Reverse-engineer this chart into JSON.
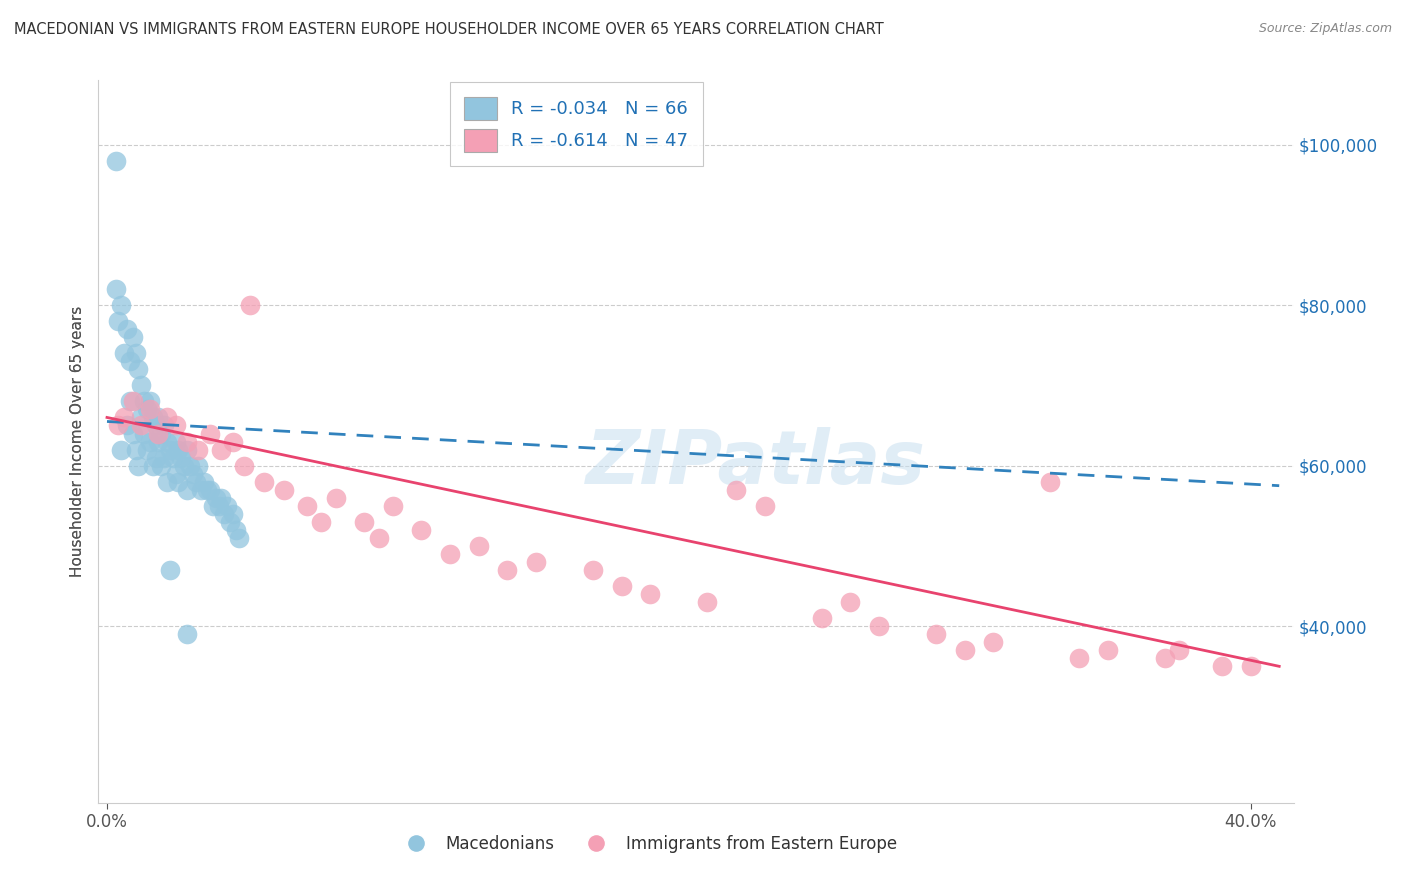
{
  "title": "MACEDONIAN VS IMMIGRANTS FROM EASTERN EUROPE HOUSEHOLDER INCOME OVER 65 YEARS CORRELATION CHART",
  "source": "Source: ZipAtlas.com",
  "ylabel": "Householder Income Over 65 years",
  "y_min": 18000,
  "y_max": 108000,
  "x_min": -0.003,
  "x_max": 0.415,
  "r1": -0.034,
  "n1": 66,
  "r2": -0.614,
  "n2": 47,
  "blue_color": "#92c5de",
  "pink_color": "#f4a0b5",
  "blue_line_color": "#3182bd",
  "pink_line_color": "#e8436e",
  "legend_label1": "Macedonians",
  "legend_label2": "Immigrants from Eastern Europe",
  "blue_scatter_x": [
    0.003,
    0.005,
    0.006,
    0.007,
    0.007,
    0.008,
    0.008,
    0.009,
    0.009,
    0.01,
    0.01,
    0.011,
    0.011,
    0.012,
    0.012,
    0.013,
    0.013,
    0.014,
    0.014,
    0.015,
    0.015,
    0.016,
    0.016,
    0.017,
    0.017,
    0.018,
    0.018,
    0.019,
    0.019,
    0.02,
    0.02,
    0.021,
    0.021,
    0.022,
    0.023,
    0.024,
    0.024,
    0.025,
    0.025,
    0.026,
    0.027,
    0.028,
    0.028,
    0.029,
    0.03,
    0.031,
    0.032,
    0.033,
    0.034,
    0.035,
    0.036,
    0.037,
    0.038,
    0.039,
    0.04,
    0.041,
    0.042,
    0.043,
    0.044,
    0.045,
    0.046,
    0.003,
    0.004,
    0.005,
    0.022,
    0.028
  ],
  "blue_scatter_y": [
    98000,
    62000,
    74000,
    77000,
    65000,
    73000,
    68000,
    76000,
    64000,
    74000,
    62000,
    72000,
    60000,
    70000,
    66000,
    68000,
    64000,
    67000,
    62000,
    68000,
    63000,
    66000,
    60000,
    65000,
    61000,
    66000,
    63000,
    64000,
    60000,
    65000,
    61000,
    63000,
    58000,
    62000,
    61000,
    63000,
    59000,
    62000,
    58000,
    61000,
    60000,
    62000,
    57000,
    60000,
    59000,
    58000,
    60000,
    57000,
    58000,
    57000,
    57000,
    55000,
    56000,
    55000,
    56000,
    54000,
    55000,
    53000,
    54000,
    52000,
    51000,
    82000,
    78000,
    80000,
    47000,
    39000
  ],
  "pink_scatter_x": [
    0.004,
    0.006,
    0.009,
    0.012,
    0.015,
    0.018,
    0.021,
    0.024,
    0.028,
    0.032,
    0.036,
    0.04,
    0.044,
    0.048,
    0.055,
    0.062,
    0.07,
    0.08,
    0.09,
    0.1,
    0.11,
    0.13,
    0.15,
    0.17,
    0.19,
    0.21,
    0.23,
    0.25,
    0.27,
    0.29,
    0.31,
    0.33,
    0.35,
    0.37,
    0.39,
    0.05,
    0.075,
    0.095,
    0.12,
    0.14,
    0.18,
    0.22,
    0.26,
    0.3,
    0.34,
    0.375,
    0.4
  ],
  "pink_scatter_y": [
    65000,
    66000,
    68000,
    65000,
    67000,
    64000,
    66000,
    65000,
    63000,
    62000,
    64000,
    62000,
    63000,
    60000,
    58000,
    57000,
    55000,
    56000,
    53000,
    55000,
    52000,
    50000,
    48000,
    47000,
    44000,
    43000,
    55000,
    41000,
    40000,
    39000,
    38000,
    58000,
    37000,
    36000,
    35000,
    80000,
    53000,
    51000,
    49000,
    47000,
    45000,
    57000,
    43000,
    37000,
    36000,
    37000,
    35000
  ]
}
